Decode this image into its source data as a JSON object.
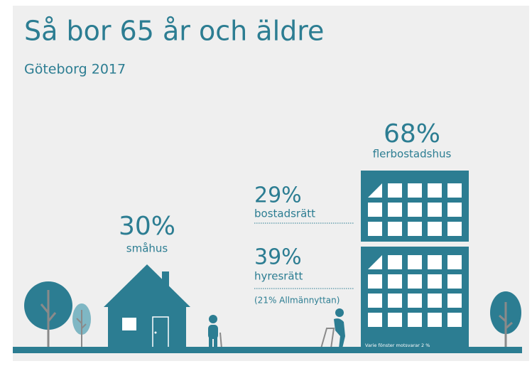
{
  "header": {
    "title": "Så bor 65 år och äldre",
    "subtitle": "Göteborg 2017"
  },
  "groups": [
    {
      "value": "68%",
      "label": "flerbostadshus"
    },
    {
      "value": "29%",
      "label": "bostadsrätt"
    },
    {
      "value": "39%",
      "label": "hyresrätt",
      "note": "(21% Allmännyttan)"
    },
    {
      "value": "30%",
      "label": "småhus"
    }
  ],
  "footnote": "Varje fönster motsvarar 2 %"
}
